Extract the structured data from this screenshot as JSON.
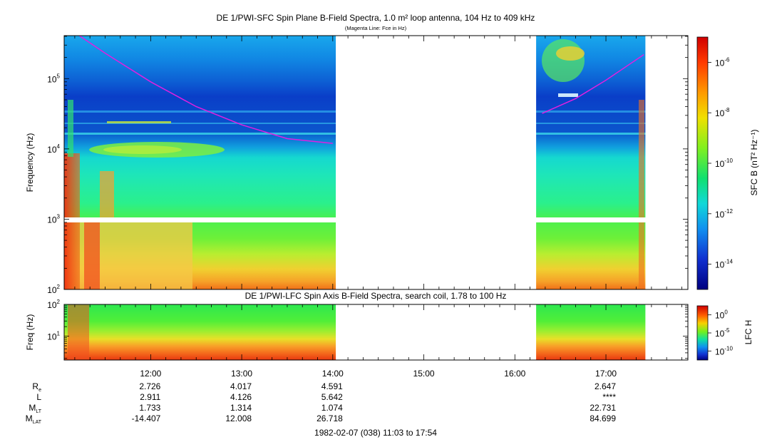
{
  "header": {
    "title": "DE 1/PWI-SFC  Spin Plane B-Field Spectra, 1.0 m² loop antenna, 104 Hz to 409 kHz",
    "subtitle": "(Magenta Line: Fce in Hz)"
  },
  "lower_panel_title": "DE 1/PWI-LFC  Spin Axis B-Field Spectra, search coil, 1.78 to 100 Hz",
  "footer": "1982-02-07 (038) 11:03 to 17:54",
  "ephemeris": {
    "rows": [
      {
        "label": "R",
        "sub": "e",
        "values": [
          "2.726",
          "4.017",
          "4.591",
          "",
          "",
          "2.647"
        ]
      },
      {
        "label": "L",
        "sub": "",
        "values": [
          "2.911",
          "4.126",
          "5.642",
          "",
          "",
          "****"
        ]
      },
      {
        "label": "M",
        "sub": "LT",
        "values": [
          "1.733",
          "1.314",
          "1.074",
          "",
          "",
          "22.731"
        ]
      },
      {
        "label": "M",
        "sub": "LAT",
        "values": [
          "-14.407",
          "12.008",
          "26.718",
          "",
          "",
          "84.699"
        ]
      }
    ]
  },
  "colors": {
    "magenta": "#e020e0",
    "gap": "#ffffff"
  },
  "chart_data": [
    {
      "type": "heatmap",
      "name": "SFC spectrogram",
      "ylabel": "Frequency (Hz)",
      "yscale": "log",
      "ylim": [
        100,
        409000
      ],
      "yticks": [
        {
          "v": 100,
          "b": "10",
          "e": "2"
        },
        {
          "v": 1000,
          "b": "10",
          "e": "3"
        },
        {
          "v": 10000,
          "b": "10",
          "e": "4"
        },
        {
          "v": 100000,
          "b": "10",
          "e": "5"
        }
      ],
      "xlim": [
        "11:03",
        "17:54"
      ],
      "xticks": [
        "12:00",
        "13:00",
        "14:00",
        "15:00",
        "16:00",
        "17:00"
      ],
      "data_gaps": [
        [
          "14:02",
          "16:14"
        ],
        [
          "17:26",
          "17:54"
        ]
      ],
      "colorbar": {
        "label": "SFC B (nT² Hz⁻¹)",
        "scale": "log",
        "ticks": [
          "-6",
          "-8",
          "-10",
          "-12",
          "-14"
        ]
      },
      "fce_line": {
        "description": "Fce in Hz",
        "segments": [
          {
            "t": [
              "11:13",
              "11:30",
              "12:00",
              "12:30",
              "13:00",
              "13:30",
              "14:00"
            ],
            "f": [
              409000,
              230000,
              90000,
              40000,
              22000,
              14000,
              12000
            ]
          },
          {
            "t": [
              "16:18",
              "16:40",
              "17:00",
              "17:25"
            ],
            "f": [
              32000,
              52000,
              95000,
              220000
            ]
          }
        ]
      }
    },
    {
      "type": "heatmap",
      "name": "LFC spectrogram",
      "ylabel": "Freq (Hz)",
      "yscale": "log",
      "ylim": [
        1.78,
        100
      ],
      "yticks": [
        {
          "v": 10,
          "b": "10",
          "e": "1"
        },
        {
          "v": 100,
          "b": "10",
          "e": "2"
        }
      ],
      "colorbar": {
        "label": "LFC H",
        "scale": "log",
        "ticks": [
          "0",
          "-5",
          "-10"
        ]
      }
    }
  ]
}
